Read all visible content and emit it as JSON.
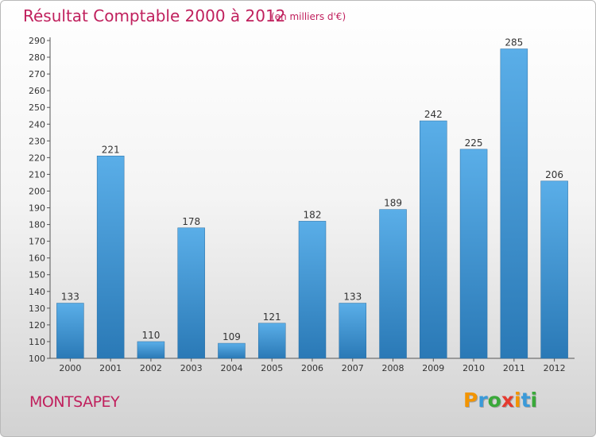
{
  "title": "Résultat Comptable 2000 à 2012",
  "subtitle": "(en milliers d'€)",
  "commune": "MONTSAPEY",
  "logo": {
    "text": "Proxiti",
    "colors": [
      "#f29400",
      "#3a9ad9",
      "#3aa93a",
      "#e53a2f",
      "#f29400",
      "#3a9ad9",
      "#3aa93a"
    ]
  },
  "colors": {
    "accent": "#c0205d",
    "bar_light": "#5aaee8",
    "bar_dark": "#2a79b6"
  },
  "chart_data": {
    "type": "bar",
    "categories": [
      "2000",
      "2001",
      "2002",
      "2003",
      "2004",
      "2005",
      "2006",
      "2007",
      "2008",
      "2009",
      "2010",
      "2011",
      "2012"
    ],
    "values": [
      133,
      221,
      110,
      178,
      109,
      121,
      182,
      133,
      189,
      242,
      225,
      285,
      206
    ],
    "ylim": [
      100,
      290
    ],
    "yticks": [
      100,
      110,
      120,
      130,
      140,
      150,
      160,
      170,
      180,
      190,
      200,
      210,
      220,
      230,
      240,
      250,
      260,
      270,
      280,
      290
    ],
    "grid": false
  }
}
